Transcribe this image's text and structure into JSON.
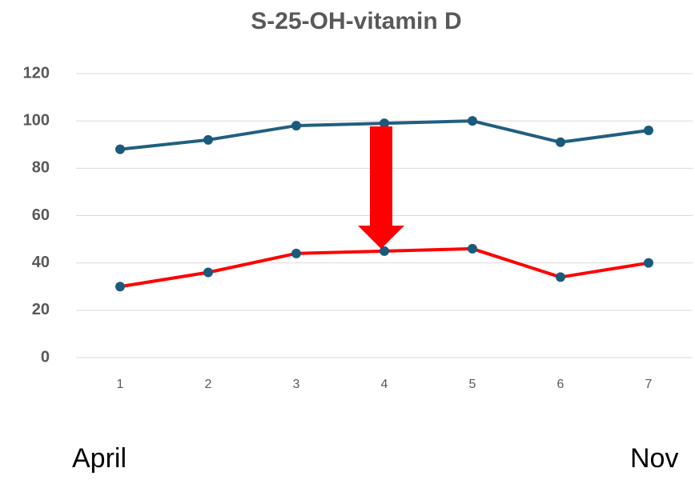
{
  "chart_data": {
    "type": "line",
    "title": "S-25-OH-vitamin D",
    "categories": [
      "1",
      "2",
      "3",
      "4",
      "5",
      "6",
      "7"
    ],
    "series": [
      {
        "color": "#215f80",
        "values": [
          88,
          92,
          98,
          99,
          100,
          91,
          96
        ]
      },
      {
        "color": "#ff0000",
        "values": [
          30,
          36,
          44,
          45,
          46,
          34,
          40
        ]
      }
    ],
    "marker_color": "#1b5a7a",
    "ylim": [
      0,
      120
    ],
    "yticks": [
      0,
      20,
      40,
      60,
      80,
      100,
      120
    ],
    "grid": true,
    "annotations": [
      "April",
      "Nov"
    ]
  }
}
